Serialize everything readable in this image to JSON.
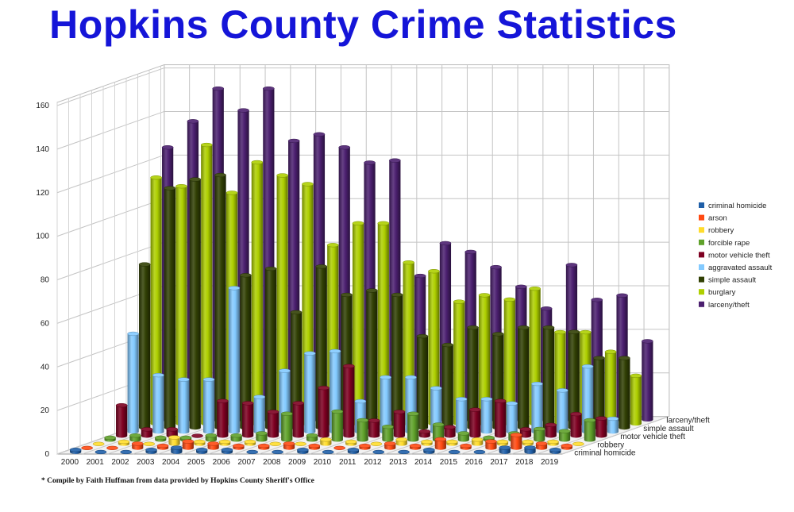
{
  "title": "Hopkins County Crime Statistics",
  "footnote": "* Compile by Faith Huffman from data provided by Hopkins County Sheriff's Office",
  "chart_data": {
    "type": "bar",
    "style": "3d-clustered-column",
    "title": "Hopkins County Crime Statistics",
    "categories": [
      "2000",
      "2001",
      "2002",
      "2003",
      "2004",
      "2005",
      "2006",
      "2007",
      "2008",
      "2009",
      "2010",
      "2011",
      "2012",
      "2013",
      "2014",
      "2015",
      "2016",
      "2017",
      "2018",
      "2019"
    ],
    "depth_labels": [
      "criminal homicide",
      "robbery",
      "motor vehicle theft",
      "simple assault",
      "larceny/theft"
    ],
    "ylim": [
      0,
      160
    ],
    "yticks": [
      0,
      20,
      40,
      60,
      80,
      100,
      120,
      140,
      160
    ],
    "grid": true,
    "legend_position": "right",
    "series": [
      {
        "name": "criminal homicide",
        "color": "#1f5fa8",
        "values": [
          1,
          0,
          0,
          1,
          2,
          1,
          1,
          0,
          0,
          1,
          0,
          1,
          0,
          0,
          1,
          0,
          0,
          2,
          2,
          1
        ]
      },
      {
        "name": "arson",
        "color": "#ff4a12",
        "values": [
          0,
          0,
          2,
          1,
          3,
          2,
          1,
          1,
          2,
          1,
          0,
          1,
          2,
          1,
          4,
          1,
          3,
          6,
          2,
          1
        ]
      },
      {
        "name": "robbery",
        "color": "#ffdc2c",
        "values": [
          0,
          1,
          0,
          3,
          1,
          1,
          1,
          0,
          0,
          2,
          1,
          0,
          2,
          1,
          1,
          2,
          1,
          1,
          1,
          0
        ]
      },
      {
        "name": "forcible rape",
        "color": "#5fa12a",
        "values": [
          1,
          2,
          1,
          1,
          2,
          2,
          3,
          12,
          2,
          13,
          9,
          6,
          12,
          7,
          3,
          1,
          3,
          5,
          4,
          9
        ]
      },
      {
        "name": "motor vehicle theft",
        "color": "#7e0021",
        "values": [
          14,
          3,
          3,
          0,
          16,
          15,
          11,
          15,
          22,
          32,
          7,
          11,
          2,
          4,
          12,
          16,
          3,
          5,
          10,
          8
        ]
      },
      {
        "name": "aggravated assault",
        "color": "#83caff",
        "values": [
          45,
          26,
          24,
          24,
          66,
          16,
          28,
          36,
          37,
          14,
          25,
          25,
          20,
          15,
          15,
          13,
          22,
          19,
          30,
          6
        ]
      },
      {
        "name": "simple assault",
        "color": "#314004",
        "values": [
          75,
          110,
          114,
          116,
          70,
          73,
          53,
          74,
          61,
          63,
          61,
          42,
          38,
          46,
          43,
          46,
          46,
          44,
          32,
          32
        ]
      },
      {
        "name": "burglary",
        "color": "#aecf00",
        "values": [
          113,
          109,
          128,
          106,
          120,
          114,
          110,
          82,
          92,
          92,
          74,
          70,
          56,
          59,
          57,
          62,
          42,
          42,
          33,
          22
        ]
      },
      {
        "name": "larceny/theft",
        "color": "#4b1f6f",
        "values": [
          125,
          137,
          152,
          142,
          152,
          128,
          131,
          125,
          118,
          119,
          66,
          81,
          77,
          70,
          61,
          51,
          71,
          55,
          57,
          36
        ]
      }
    ]
  }
}
